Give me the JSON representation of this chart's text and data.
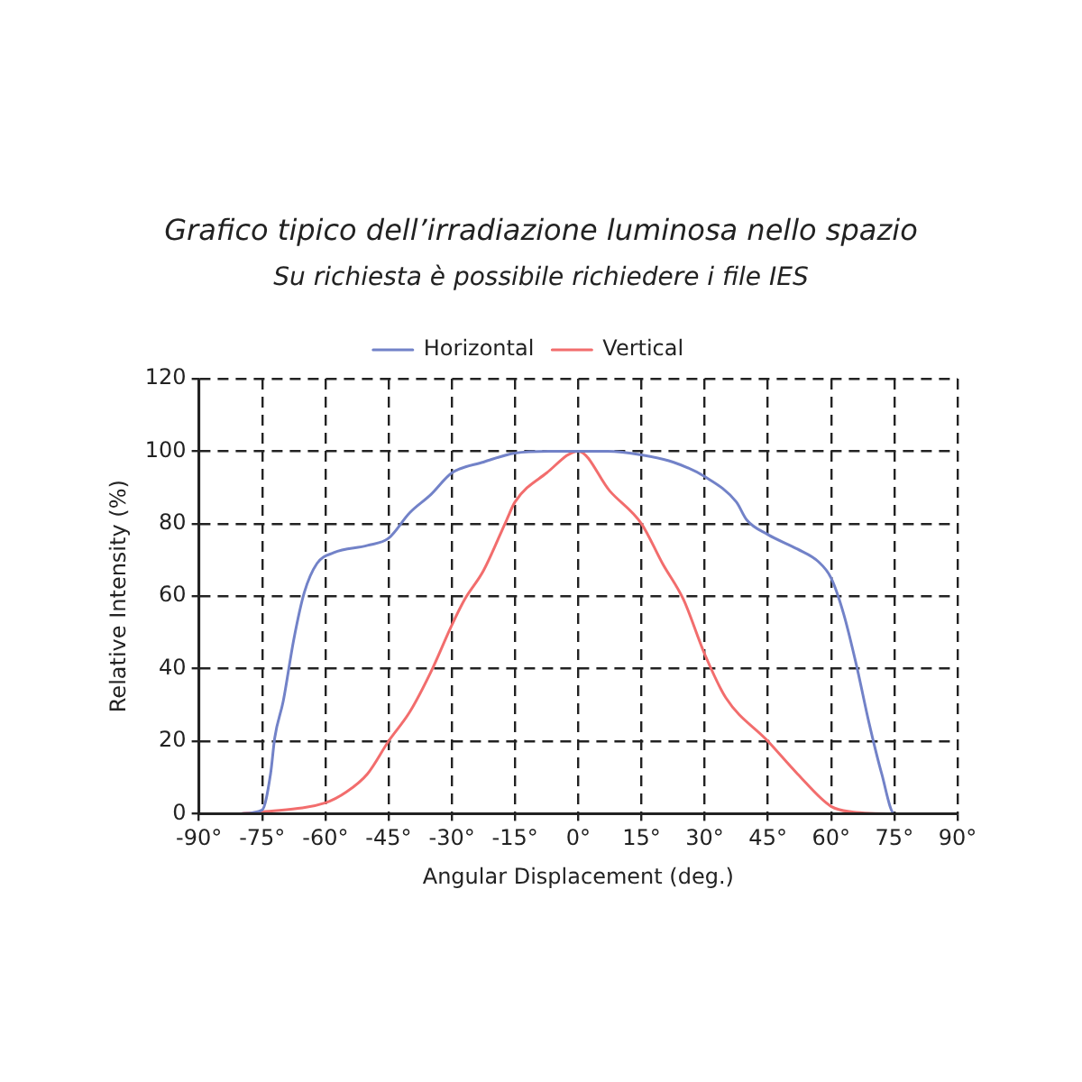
{
  "chart_data": {
    "type": "line",
    "title": "Grafico tipico dell’irradiazione luminosa nello spazio",
    "subtitle": "Su richiesta è possibile richiedere i file IES",
    "xlabel": "Angular Displacement (deg.)",
    "ylabel": "Relative Intensity (%)",
    "xlim": [
      -90,
      90
    ],
    "xticks": [
      {
        "value": -90,
        "label": "-90°"
      },
      {
        "value": -75,
        "label": "-75°"
      },
      {
        "value": -60,
        "label": "-60°"
      },
      {
        "value": -45,
        "label": "-45°"
      },
      {
        "value": -30,
        "label": "-30°"
      },
      {
        "value": -15,
        "label": "-15°"
      },
      {
        "value": 0,
        "label": "0°"
      },
      {
        "value": 15,
        "label": "15°"
      },
      {
        "value": 30,
        "label": "30°"
      },
      {
        "value": 45,
        "label": "45°"
      },
      {
        "value": 60,
        "label": "60°"
      },
      {
        "value": 75,
        "label": "75°"
      },
      {
        "value": 90,
        "label": "90°"
      }
    ],
    "ylim": [
      0,
      120
    ],
    "yticks": [
      0,
      20,
      40,
      60,
      80,
      100,
      120
    ],
    "grid": true,
    "legend": "top",
    "marker": "none",
    "line_style": "solid",
    "series": [
      {
        "name": "Horizontal",
        "color": "#7282c8",
        "x": [
          -80,
          -75,
          -73,
          -72,
          -70,
          -67.5,
          -65,
          -62,
          -58,
          -50,
          -45,
          -40,
          -35,
          -30,
          -22.5,
          -15,
          -7,
          0,
          7,
          15,
          22.5,
          30,
          37.5,
          40,
          45,
          52,
          57,
          60,
          63,
          66,
          69,
          72,
          75,
          80
        ],
        "values": [
          0,
          1,
          11,
          21,
          31,
          48,
          61,
          69,
          72,
          74,
          76,
          83,
          88,
          94,
          97,
          99.5,
          100,
          100,
          100,
          99,
          97,
          93,
          86,
          81,
          77,
          73,
          69.5,
          65,
          55,
          41,
          25,
          11,
          0,
          0
        ]
      },
      {
        "name": "Vertical",
        "color": "#f26d6d",
        "x": [
          -80,
          -75,
          -60,
          -55,
          -50,
          -45,
          -40,
          -35,
          -30,
          -27,
          -22.5,
          -17,
          -15,
          -7.5,
          0,
          7.5,
          15,
          20,
          25,
          30,
          35,
          45,
          52,
          60,
          65,
          75,
          80
        ],
        "values": [
          0,
          0.5,
          3,
          6,
          11,
          20,
          28,
          39,
          52,
          59,
          67,
          81,
          86,
          94,
          100,
          89,
          80,
          69,
          59,
          44,
          32,
          20,
          11,
          2,
          0.5,
          0,
          0
        ]
      }
    ]
  }
}
